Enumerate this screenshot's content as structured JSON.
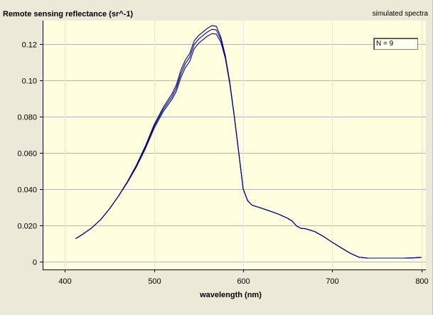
{
  "chart_data": {
    "type": "line",
    "title": "Remote sensing reflectance (sr^-1)",
    "subtitle": "simulated spectra",
    "xlabel": "wavelength (nm)",
    "ylabel": "",
    "xlim": [
      375,
      805
    ],
    "ylim": [
      -0.0045,
      0.133
    ],
    "x_ticks": [
      "400",
      "500",
      "600",
      "700",
      "800"
    ],
    "y_ticks": [
      "0",
      "0.020",
      "0.040",
      "0.060",
      "0.080",
      "0.10",
      "0.12"
    ],
    "annotation": "N = 9",
    "grid": true,
    "colors": {
      "line": "#00008b",
      "plot_bg": "#ffffe0",
      "window_bg": "#ece9d8",
      "grid": "#b4b4b4"
    },
    "series": [
      {
        "x": [
          412,
          420,
          430,
          440,
          450,
          460,
          470,
          480,
          490,
          500,
          510,
          520,
          525,
          530,
          535,
          540,
          545,
          550,
          555,
          560,
          565,
          570,
          575,
          580,
          585,
          590,
          595,
          600,
          605,
          610,
          620,
          630,
          640,
          650,
          655,
          660,
          665,
          670,
          680,
          690,
          700,
          710,
          720,
          730,
          740,
          750,
          760,
          770,
          780,
          790,
          800
        ],
        "values": [
          0.0125,
          0.015,
          0.0185,
          0.023,
          0.029,
          0.036,
          0.0435,
          0.052,
          0.062,
          0.0735,
          0.0825,
          0.0895,
          0.094,
          0.1015,
          0.107,
          0.1105,
          0.1175,
          0.1205,
          0.1225,
          0.1245,
          0.1258,
          0.1255,
          0.121,
          0.112,
          0.098,
          0.08,
          0.06,
          0.04,
          0.0335,
          0.031,
          0.0295,
          0.0278,
          0.026,
          0.0238,
          0.0222,
          0.0195,
          0.0182,
          0.018,
          0.0165,
          0.0138,
          0.0105,
          0.0075,
          0.0045,
          0.0023,
          0.0018,
          0.0018,
          0.0018,
          0.0018,
          0.0018,
          0.0019,
          0.0022
        ]
      },
      {
        "x": [
          412,
          420,
          430,
          440,
          450,
          460,
          470,
          480,
          490,
          500,
          510,
          520,
          525,
          530,
          535,
          540,
          545,
          550,
          555,
          560,
          565,
          570,
          575,
          580,
          585,
          590,
          595,
          600,
          605,
          610,
          620,
          630,
          640,
          650,
          655,
          660,
          665,
          670,
          680,
          690,
          700,
          710,
          720,
          730,
          740,
          750,
          760,
          770,
          780,
          790,
          800
        ],
        "values": [
          0.0125,
          0.015,
          0.0185,
          0.023,
          0.029,
          0.036,
          0.0437,
          0.0525,
          0.0628,
          0.0745,
          0.0837,
          0.091,
          0.0958,
          0.1035,
          0.1092,
          0.1128,
          0.1198,
          0.1228,
          0.1248,
          0.1268,
          0.1282,
          0.1278,
          0.1225,
          0.1128,
          0.0985,
          0.0802,
          0.06,
          0.04,
          0.0335,
          0.031,
          0.0295,
          0.0278,
          0.026,
          0.0238,
          0.0222,
          0.0195,
          0.0182,
          0.018,
          0.0165,
          0.0138,
          0.0105,
          0.0075,
          0.0045,
          0.0023,
          0.0018,
          0.0018,
          0.0018,
          0.0018,
          0.0018,
          0.0019,
          0.0022
        ]
      },
      {
        "x": [
          412,
          420,
          430,
          440,
          450,
          460,
          470,
          480,
          490,
          500,
          510,
          520,
          525,
          530,
          535,
          540,
          545,
          550,
          555,
          560,
          565,
          570,
          575,
          580,
          585,
          590,
          595,
          600,
          605,
          610,
          620,
          630,
          640,
          650,
          655,
          660,
          665,
          670,
          680,
          690,
          700,
          710,
          720,
          730,
          740,
          750,
          760,
          770,
          780,
          790,
          800
        ],
        "values": [
          0.0125,
          0.015,
          0.0185,
          0.023,
          0.029,
          0.036,
          0.044,
          0.053,
          0.0635,
          0.0755,
          0.0848,
          0.0925,
          0.0975,
          0.1055,
          0.1112,
          0.1148,
          0.1218,
          0.1248,
          0.1268,
          0.1288,
          0.1303,
          0.1298,
          0.1238,
          0.1135,
          0.099,
          0.0805,
          0.0602,
          0.0401,
          0.0335,
          0.031,
          0.0295,
          0.0278,
          0.026,
          0.0238,
          0.0222,
          0.0195,
          0.0182,
          0.018,
          0.0165,
          0.0138,
          0.0105,
          0.0075,
          0.0045,
          0.0023,
          0.0018,
          0.0018,
          0.0018,
          0.0018,
          0.0018,
          0.0019,
          0.0022
        ]
      }
    ]
  }
}
